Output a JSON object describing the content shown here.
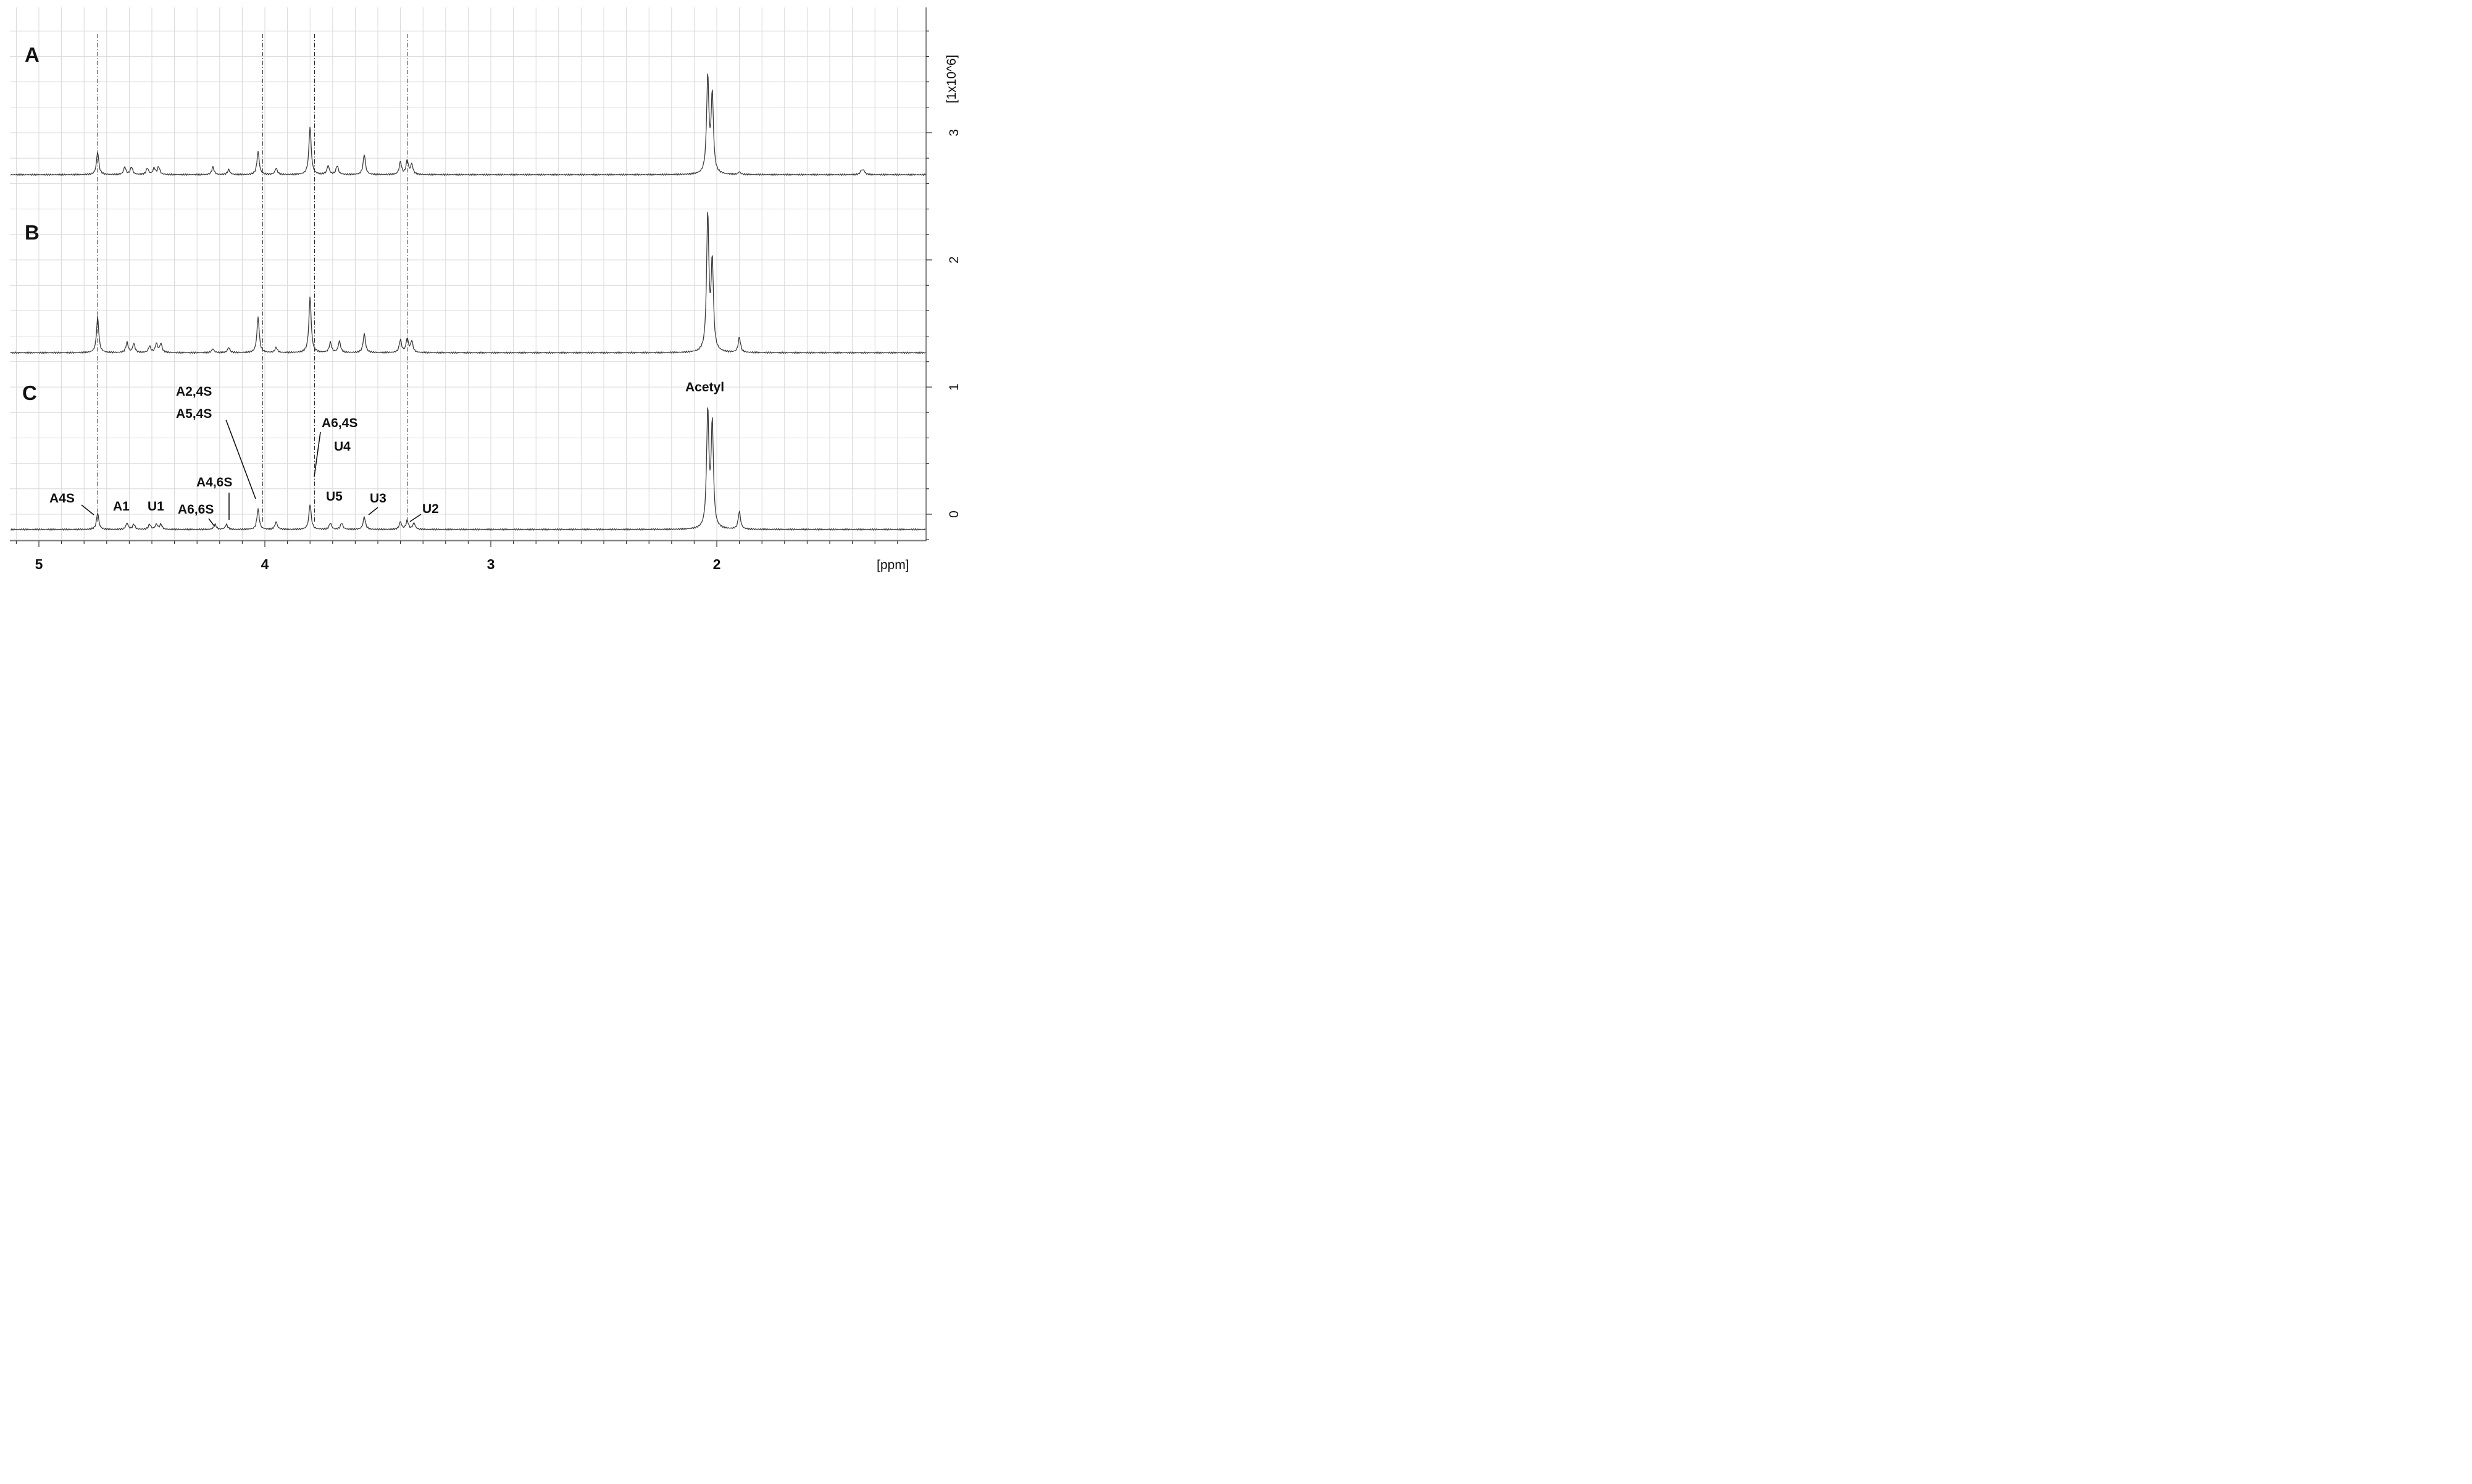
{
  "chart_data": {
    "type": "line",
    "xlabel": "[ppm]",
    "ylabel": "[1x10^6]",
    "xlim": [
      5.15,
      1.22
    ],
    "ylim": [
      -0.2,
      3.9
    ],
    "x_ticks": [
      "5",
      "4",
      "3",
      "2"
    ],
    "y_ticks": [
      "0",
      "1",
      "2",
      "3"
    ],
    "grid": true,
    "reference_lines_ppm": [
      4.74,
      4.01,
      3.78,
      3.37
    ],
    "panels": [
      {
        "name": "A",
        "baseline": 2.67,
        "peaks": [
          {
            "x": 4.74,
            "h": 0.18
          },
          {
            "x": 4.62,
            "h": 0.06
          },
          {
            "x": 4.59,
            "h": 0.06
          },
          {
            "x": 4.52,
            "h": 0.05
          },
          {
            "x": 4.49,
            "h": 0.05
          },
          {
            "x": 4.47,
            "h": 0.06
          },
          {
            "x": 4.23,
            "h": 0.06
          },
          {
            "x": 4.16,
            "h": 0.04
          },
          {
            "x": 4.03,
            "h": 0.18
          },
          {
            "x": 3.95,
            "h": 0.05
          },
          {
            "x": 3.8,
            "h": 0.38
          },
          {
            "x": 3.72,
            "h": 0.07
          },
          {
            "x": 3.68,
            "h": 0.07
          },
          {
            "x": 3.56,
            "h": 0.16
          },
          {
            "x": 3.4,
            "h": 0.1
          },
          {
            "x": 3.37,
            "h": 0.11
          },
          {
            "x": 3.35,
            "h": 0.08
          },
          {
            "x": 2.04,
            "h": 0.76
          },
          {
            "x": 2.02,
            "h": 0.62
          },
          {
            "x": 1.9,
            "h": 0.02
          },
          {
            "x": 1.36,
            "h": 0.03
          },
          {
            "x": 1.35,
            "h": 0.03
          }
        ]
      },
      {
        "name": "B",
        "baseline": 1.27,
        "peaks": [
          {
            "x": 4.74,
            "h": 0.28
          },
          {
            "x": 4.61,
            "h": 0.08
          },
          {
            "x": 4.58,
            "h": 0.07
          },
          {
            "x": 4.51,
            "h": 0.05
          },
          {
            "x": 4.48,
            "h": 0.07
          },
          {
            "x": 4.46,
            "h": 0.07
          },
          {
            "x": 4.23,
            "h": 0.03
          },
          {
            "x": 4.16,
            "h": 0.04
          },
          {
            "x": 4.03,
            "h": 0.28
          },
          {
            "x": 3.95,
            "h": 0.04
          },
          {
            "x": 3.8,
            "h": 0.44
          },
          {
            "x": 3.71,
            "h": 0.08
          },
          {
            "x": 3.67,
            "h": 0.09
          },
          {
            "x": 3.56,
            "h": 0.15
          },
          {
            "x": 3.4,
            "h": 0.1
          },
          {
            "x": 3.37,
            "h": 0.11
          },
          {
            "x": 3.35,
            "h": 0.09
          },
          {
            "x": 2.04,
            "h": 1.08
          },
          {
            "x": 2.02,
            "h": 0.7
          },
          {
            "x": 1.9,
            "h": 0.12
          }
        ]
      },
      {
        "name": "C",
        "baseline": -0.12,
        "peaks": [
          {
            "x": 4.74,
            "h": 0.13
          },
          {
            "x": 4.61,
            "h": 0.05
          },
          {
            "x": 4.58,
            "h": 0.04
          },
          {
            "x": 4.51,
            "h": 0.04
          },
          {
            "x": 4.48,
            "h": 0.04
          },
          {
            "x": 4.46,
            "h": 0.04
          },
          {
            "x": 4.22,
            "h": 0.04
          },
          {
            "x": 4.17,
            "h": 0.04
          },
          {
            "x": 4.03,
            "h": 0.16
          },
          {
            "x": 3.95,
            "h": 0.06
          },
          {
            "x": 3.8,
            "h": 0.2
          },
          {
            "x": 3.71,
            "h": 0.05
          },
          {
            "x": 3.66,
            "h": 0.05
          },
          {
            "x": 3.56,
            "h": 0.1
          },
          {
            "x": 3.4,
            "h": 0.06
          },
          {
            "x": 3.37,
            "h": 0.07
          },
          {
            "x": 3.34,
            "h": 0.05
          },
          {
            "x": 2.04,
            "h": 0.92
          },
          {
            "x": 2.02,
            "h": 0.82
          },
          {
            "x": 1.9,
            "h": 0.14
          }
        ]
      }
    ],
    "annotations": [
      {
        "text": "A4S"
      },
      {
        "text": "A1"
      },
      {
        "text": "U1"
      },
      {
        "text": "A6,6S"
      },
      {
        "text": "A4,6S"
      },
      {
        "text": "A2,4S"
      },
      {
        "text": "A5,4S"
      },
      {
        "text": "A6,4S"
      },
      {
        "text": "U4"
      },
      {
        "text": "U5"
      },
      {
        "text": "U3"
      },
      {
        "text": "U2"
      },
      {
        "text": "Acetyl"
      }
    ]
  }
}
